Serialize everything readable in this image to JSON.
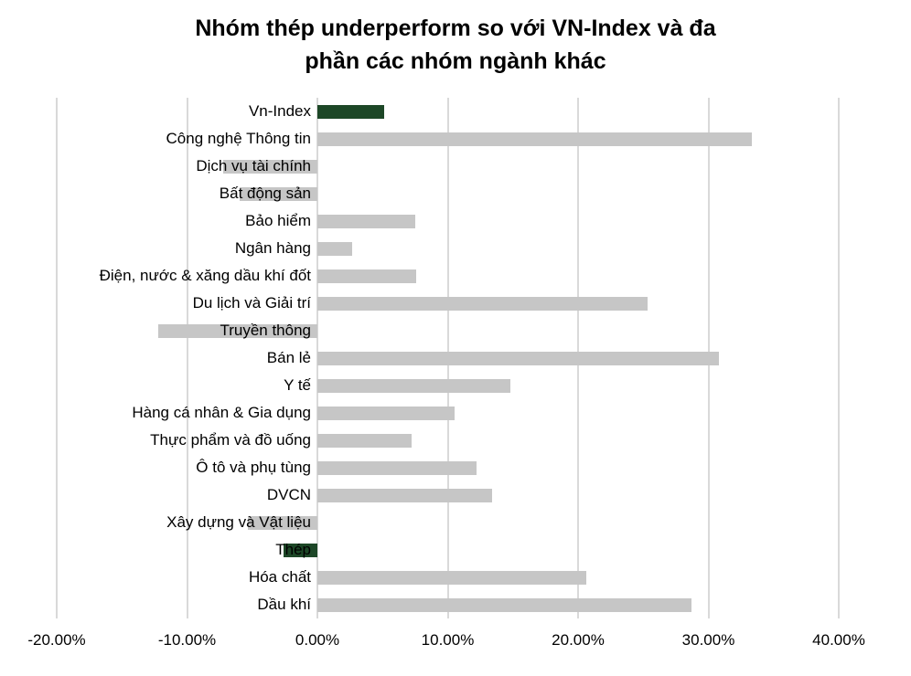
{
  "title": "Nhóm thép underperform so với VN-Index và đa phần các nhóm ngành khác",
  "title_lines": [
    "Nhóm thép underperform so với VN-Index và đa",
    "phần các nhóm ngành khác"
  ],
  "chart_data": {
    "type": "bar",
    "orientation": "horizontal",
    "title": "Nhóm thép underperform so với VN-Index và đa phần các nhóm ngành khác",
    "categories": [
      "Vn-Index",
      "Công nghệ Thông tin",
      "Dịch vụ tài chính",
      "Bất động sản",
      "Bảo hiểm",
      "Ngân hàng",
      "Điện, nước & xăng dầu khí đốt",
      "Du lịch và Giải trí",
      "Truyền thông",
      "Bán lẻ",
      "Y tế",
      "Hàng cá nhân & Gia dụng",
      "Thực phẩm và đồ uống",
      "Ô tô và phụ tùng",
      "DVCN",
      "Xây dựng và Vật liệu",
      "Thép",
      "Hóa chất",
      "Dầu khí"
    ],
    "values": [
      5.1,
      33.3,
      -7.2,
      -6.0,
      7.5,
      2.7,
      7.6,
      25.3,
      -12.2,
      30.8,
      14.8,
      10.5,
      7.2,
      12.2,
      13.4,
      -5.3,
      -2.6,
      20.6,
      28.7
    ],
    "unit": "%",
    "bar_color": "#c6c6c6",
    "highlight_color": "#1d4727",
    "highlight_indices": [
      0,
      16
    ],
    "gridline_color": "#d9d9d9",
    "x_tick_labels": [
      "-20.00%",
      "-10.00%",
      "0.00%",
      "10.00%",
      "20.00%",
      "30.00%",
      "40.00%"
    ],
    "x_tick_values": [
      -20,
      -10,
      0,
      10,
      20,
      30,
      40
    ],
    "xlim": [
      -20,
      40
    ],
    "grid": true,
    "legend": false
  }
}
